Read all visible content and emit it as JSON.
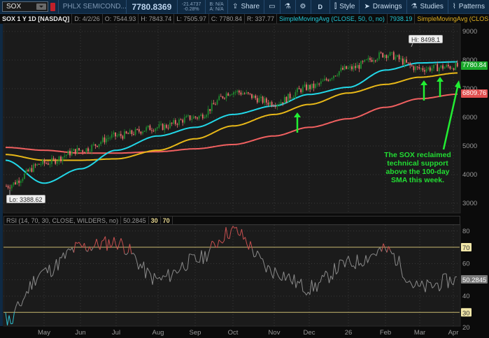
{
  "toolbar": {
    "symbol": "SOX",
    "name": "PHLX SEMICOND...",
    "last": "7780.8369",
    "change": "-21.4737",
    "change_pct": "-0.28%",
    "bid": "B: N/A",
    "ask": "A: N/A",
    "share_label": "Share",
    "aggregation": "D",
    "style_label": "Style",
    "drawings_label": "Drawings",
    "studies_label": "Studies",
    "patterns_label": "Patterns"
  },
  "infobar": {
    "title": "SOX 1 Y 1D [NASDAQ]",
    "date": "D: 4/2/26",
    "open": "O: 7544.93",
    "high": "H: 7843.74",
    "low": "L: 7505.97",
    "close": "C: 7780.84",
    "range": "R: 337.77",
    "sma50_label": "SimpleMovingAvg (CLOSE, 50, 0, no)",
    "sma50_value": "7938.19",
    "sma100_label": "SimpleMovingAvg (CLOSE, 100,..."
  },
  "price_panel": {
    "y_ticks": [
      "9000",
      "8000",
      "7000",
      "6000",
      "5000",
      "4000",
      "3000"
    ],
    "last_price_tag": "7780.84",
    "sma200_tag": "6809.76",
    "hi_label": "Hi: 8498.1",
    "lo_label": "Lo: 3388.62",
    "annotation": "The SOX reclaimed technical support above the 100-day SMA this week.",
    "colors": {
      "sma50": "#22d8e8",
      "sma100": "#e8b818",
      "sma200": "#f06060",
      "up": "#1e8a2e",
      "down": "#f07070",
      "arrow": "#22ee33",
      "last_tag": "#1aa82a",
      "sma200_tag": "#e05050"
    }
  },
  "rsi_panel": {
    "label": "RSI (14, 70, 30, CLOSE, WILDERS, no)",
    "value": "50.2845",
    "oversold": "30",
    "overbought": "70",
    "y_ticks": [
      "80",
      "70",
      "60",
      "50",
      "40",
      "30",
      "20"
    ]
  },
  "x_axis": {
    "labels": [
      "May",
      "Jun",
      "Jul",
      "Aug",
      "Sep",
      "Oct",
      "Nov",
      "Dec",
      "26",
      "Feb",
      "Mar",
      "Apr"
    ]
  },
  "chart_data": [
    {
      "type": "line",
      "title": "SOX 1 Y 1D [NASDAQ] - Price with SMAs",
      "xlabel": "",
      "ylabel": "Price",
      "ylim": [
        2800,
        9200
      ],
      "x": [
        "Apr-25",
        "May",
        "Jun",
        "Jul",
        "Aug",
        "Sep",
        "Oct",
        "Nov",
        "Dec",
        "Jan-26",
        "Feb",
        "Mar",
        "Apr-26"
      ],
      "series": [
        {
          "name": "Close",
          "values": [
            3600,
            4400,
            4850,
            5350,
            5650,
            6000,
            6900,
            6500,
            7050,
            7700,
            8200,
            7700,
            7780.84
          ]
        },
        {
          "name": "SMA 50",
          "values": [
            4500,
            3700,
            4200,
            4850,
            5350,
            5650,
            6100,
            6400,
            6800,
            7050,
            7650,
            7900,
            7938.19
          ]
        },
        {
          "name": "SMA 100",
          "values": [
            4700,
            4500,
            4500,
            4550,
            4850,
            5250,
            5700,
            6100,
            6450,
            6850,
            7150,
            7400,
            7550
          ]
        },
        {
          "name": "SMA 200",
          "values": [
            4950,
            4850,
            4750,
            4750,
            4800,
            4900,
            5050,
            5350,
            5650,
            5950,
            6350,
            6650,
            6809.76
          ]
        }
      ],
      "annotations": [
        "Hi: 8498.1",
        "Lo: 3388.62",
        "The SOX reclaimed technical support above the 100-day SMA this week."
      ]
    },
    {
      "type": "line",
      "title": "RSI (14, 70, 30, CLOSE, WILDERS, no)",
      "ylim": [
        20,
        85
      ],
      "levels": [
        30,
        70
      ],
      "last": 50.2845,
      "x": [
        "Apr-25",
        "May",
        "Jun",
        "Jul",
        "Aug",
        "Sep",
        "Oct",
        "Nov",
        "Dec",
        "Jan-26",
        "Feb",
        "Mar",
        "Apr-26"
      ],
      "series": [
        {
          "name": "RSI",
          "values": [
            25,
            55,
            70,
            73,
            50,
            62,
            80,
            55,
            45,
            60,
            68,
            45,
            50.28
          ]
        }
      ]
    }
  ]
}
